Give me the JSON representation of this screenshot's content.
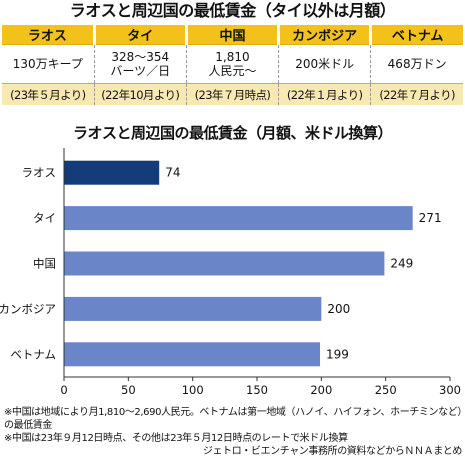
{
  "top_title": "ラオスと周辺国の最低賃金（タイ以外は月額）",
  "table": {
    "headers": [
      "ラオス",
      "タイ",
      "中国",
      "カンボジア",
      "ベトナム"
    ],
    "values": [
      [
        "130万キープ"
      ],
      [
        "328～354",
        "バーツ／日"
      ],
      [
        "1,810",
        "人民元～"
      ],
      [
        "200米ドル"
      ],
      [
        "468万ドン"
      ]
    ],
    "dates": [
      "(23年５月より)",
      "(22年10月より)",
      "(23年７月時点)",
      "(22年１月より)",
      "(22年７月より)"
    ]
  },
  "chart_title": "ラオスと周辺国の最低賃金（月額、米ドル換算）",
  "chart_data": {
    "type": "bar",
    "orientation": "horizontal",
    "categories": [
      "ラオス",
      "タイ",
      "中国",
      "カンボジア",
      "ベトナム"
    ],
    "values": [
      74,
      271,
      249,
      200,
      199
    ],
    "highlight_index": 0,
    "xlim": [
      0,
      300
    ],
    "x_ticks": [
      0,
      50,
      100,
      150,
      200,
      250,
      300
    ],
    "grid": false,
    "colors": {
      "highlight": "#143c78",
      "normal": "#6a86c9",
      "axis": "#333333"
    }
  },
  "notes": [
    "※中国は地域により月1,810～2,690人民元。ベトナムは第一地域（ハノイ、ハイフォン、ホーチミンなど）の最低賃金",
    "※中国は23年９月12日時点、その他は23年５月12日時点のレートで米ドル換算"
  ],
  "source": "ジェトロ・ビエンチャン事務所の資料などからＮＮＡまとめ"
}
